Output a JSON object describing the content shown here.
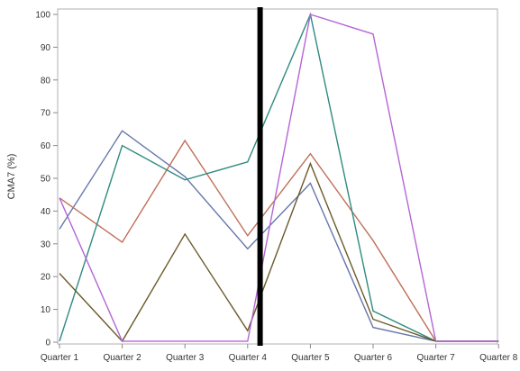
{
  "chart_data": {
    "type": "line",
    "ylabel": "CMA7 (%)",
    "xlabel": "",
    "categories": [
      "Quarter 1",
      "Quarter 2",
      "Quarter 3",
      "Quarter 4",
      "Quarter 5",
      "Quarter 6",
      "Quarter 7",
      "Quarter 8"
    ],
    "ylim": [
      0,
      100
    ],
    "yticks": [
      0,
      10,
      20,
      30,
      40,
      50,
      60,
      70,
      80,
      90,
      100
    ],
    "grid": false,
    "legend": "none",
    "divider_between": [
      "Quarter 4",
      "Quarter 5"
    ],
    "series": [
      {
        "color": "#6677aa",
        "values": [
          34.5,
          64.5,
          50.5,
          28.5,
          48.5,
          4.5,
          0.3,
          0.3
        ]
      },
      {
        "color": "#c0705a",
        "values": [
          44.0,
          30.5,
          61.5,
          32.5,
          57.5,
          31.0,
          0.3,
          0.3
        ]
      },
      {
        "color": "#2e8b80",
        "values": [
          0.3,
          60.0,
          49.5,
          55.0,
          100.0,
          9.5,
          0.3,
          0.3
        ]
      },
      {
        "color": "#6b5a2a",
        "values": [
          21.0,
          0.3,
          33.0,
          3.5,
          54.5,
          7.0,
          0.3,
          0.3
        ]
      },
      {
        "color": "#b565d6",
        "values": [
          44.0,
          0.3,
          0.3,
          0.3,
          100.0,
          94.0,
          0.3,
          0.3
        ]
      }
    ]
  }
}
